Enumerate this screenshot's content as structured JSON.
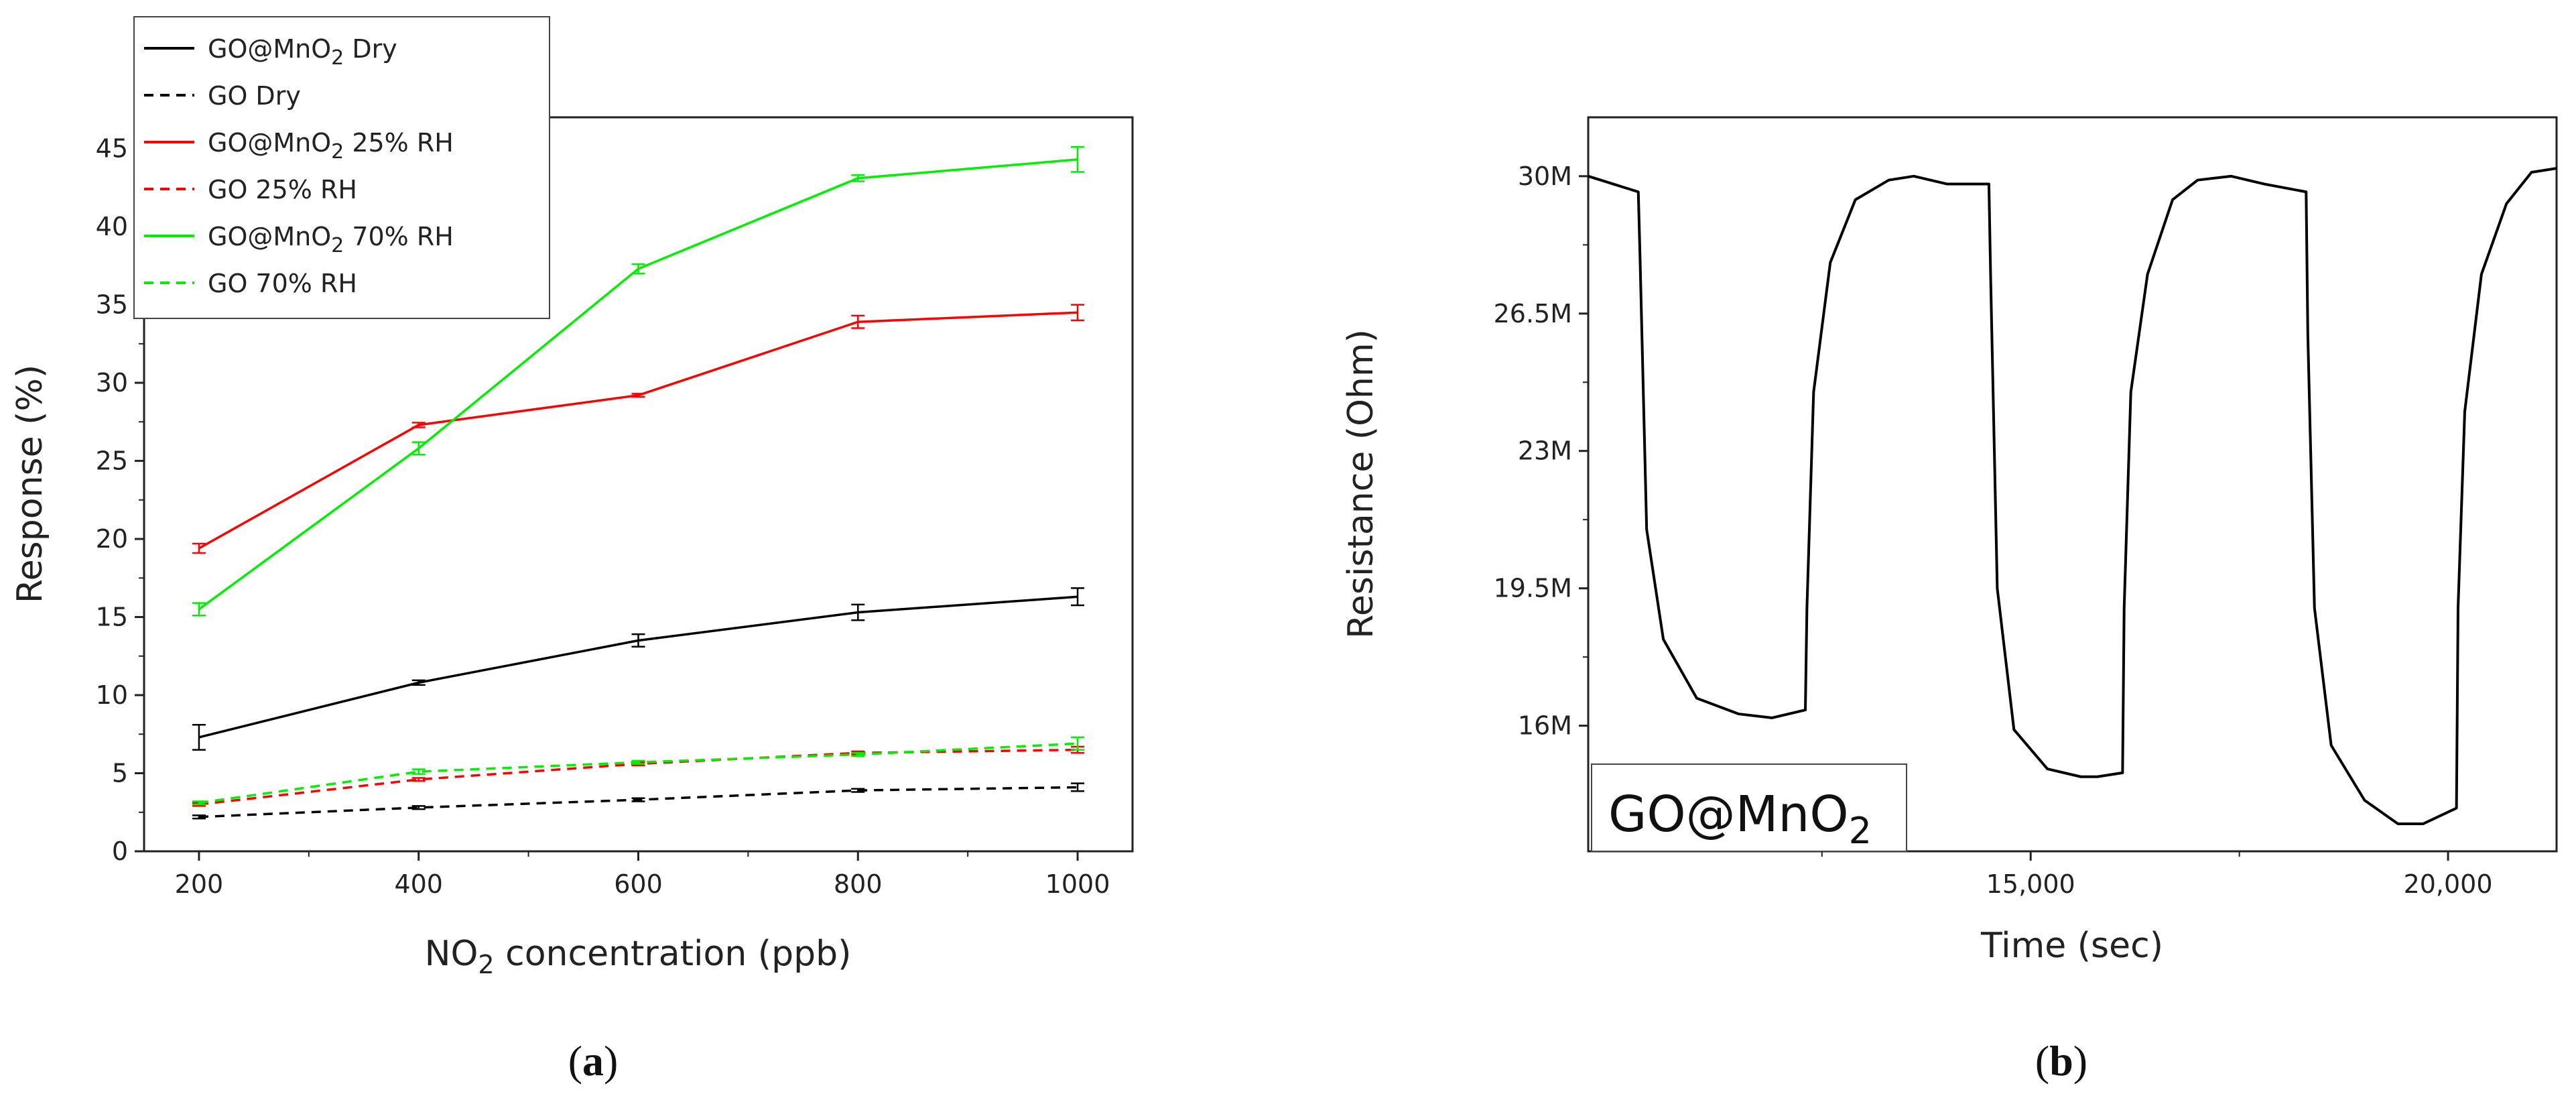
{
  "chart_data": [
    {
      "id": "a",
      "type": "line",
      "panel_label": "a",
      "xlabel": "NO2 concentration (ppb)",
      "xlabel_main": "NO",
      "xlabel_sub": "2",
      "xlabel_rest": " concentration (ppb)",
      "ylabel": "Response (%)",
      "xlim": [
        150,
        1050
      ],
      "ylim": [
        0,
        47
      ],
      "x_ticks": [
        200,
        400,
        600,
        800,
        1000
      ],
      "y_ticks": [
        0,
        5,
        10,
        15,
        20,
        25,
        30,
        35,
        40,
        45
      ],
      "x": [
        200,
        400,
        600,
        800,
        1000
      ],
      "legend_position": "top-left, outside above axes",
      "series": [
        {
          "name": "GO@MnO2 Dry",
          "label_main": "GO@MnO",
          "label_sub": "2",
          "label_rest": " Dry",
          "color": "#000000",
          "style": "solid",
          "values": [
            7.3,
            10.8,
            13.5,
            15.3,
            16.3
          ],
          "errors": [
            0.8,
            0.15,
            0.4,
            0.5,
            0.55
          ]
        },
        {
          "name": "GO Dry",
          "label_main": "GO Dry",
          "label_sub": "",
          "label_rest": "",
          "color": "#000000",
          "style": "dashed",
          "values": [
            2.2,
            2.8,
            3.3,
            3.9,
            4.1
          ],
          "errors": [
            0.1,
            0.1,
            0.1,
            0.1,
            0.25
          ]
        },
        {
          "name": "GO@MnO2 25% RH",
          "label_main": "GO@MnO",
          "label_sub": "2",
          "label_rest": " 25% RH",
          "color": "#ff0000",
          "style": "solid",
          "values": [
            19.4,
            27.3,
            29.2,
            33.9,
            34.5
          ],
          "errors": [
            0.3,
            0.15,
            0.1,
            0.4,
            0.5
          ]
        },
        {
          "name": "GO 25% RH",
          "label_main": "GO 25% RH",
          "label_sub": "",
          "label_rest": "",
          "color": "#ff0000",
          "style": "dashed",
          "values": [
            3.0,
            4.6,
            5.6,
            6.3,
            6.5
          ],
          "errors": [
            0.1,
            0.1,
            0.1,
            0.1,
            0.2
          ]
        },
        {
          "name": "GO@MnO2 70% RH",
          "label_main": "GO@MnO",
          "label_sub": "2",
          "label_rest": " 70% RH",
          "color": "#00ee00",
          "style": "solid",
          "values": [
            15.5,
            25.8,
            37.3,
            43.1,
            44.3
          ],
          "errors": [
            0.4,
            0.4,
            0.3,
            0.2,
            0.8
          ]
        },
        {
          "name": "GO 70% RH",
          "label_main": "GO 70% RH",
          "label_sub": "",
          "label_rest": "",
          "color": "#00ee00",
          "style": "dashed",
          "values": [
            3.1,
            5.1,
            5.7,
            6.2,
            6.9
          ],
          "errors": [
            0.1,
            0.15,
            0.1,
            0.1,
            0.4
          ]
        }
      ]
    },
    {
      "id": "b",
      "type": "line",
      "panel_label": "b",
      "xlabel": "Time (sec)",
      "ylabel": "Resistance (Ohm)",
      "annotation_main": "GO@MnO",
      "annotation_sub": "2",
      "xlim": [
        9700,
        21300
      ],
      "ylim": [
        12800000,
        31500000
      ],
      "x_ticks": [
        15000,
        20000
      ],
      "x_tick_labels": [
        "15,000",
        "20,000"
      ],
      "y_ticks": [
        16000000,
        19500000,
        23000000,
        26500000,
        30000000
      ],
      "y_tick_labels": [
        "16M",
        "19.5M",
        "23M",
        "26.5M",
        "30M"
      ],
      "series": [
        {
          "name": "GO@MnO2",
          "color": "#000000",
          "x": [
            9700,
            10300,
            10320,
            10400,
            10600,
            11000,
            11500,
            11900,
            12100,
            12301,
            12320,
            12400,
            12600,
            12900,
            13300,
            13600,
            14000,
            14500,
            14520,
            14600,
            14800,
            15200,
            15600,
            15800,
            16101,
            16120,
            16200,
            16400,
            16700,
            17000,
            17400,
            17800,
            18300,
            18320,
            18400,
            18600,
            19000,
            19400,
            19700,
            20101,
            20120,
            20200,
            20400,
            20700,
            21000,
            21300
          ],
          "y": [
            30000000,
            29600000,
            28000000,
            21000000,
            18200000,
            16700000,
            16300000,
            16200000,
            16300000,
            16400000,
            19000000,
            24500000,
            27800000,
            29400000,
            29900000,
            30000000,
            29800000,
            29800000,
            27500000,
            19500000,
            15900000,
            14900000,
            14700000,
            14700000,
            14800000,
            19000000,
            24500000,
            27500000,
            29400000,
            29900000,
            30000000,
            29800000,
            29600000,
            26000000,
            19000000,
            15500000,
            14100000,
            13500000,
            13500000,
            13900000,
            19000000,
            24000000,
            27500000,
            29300000,
            30100000,
            30200000
          ]
        }
      ]
    }
  ]
}
